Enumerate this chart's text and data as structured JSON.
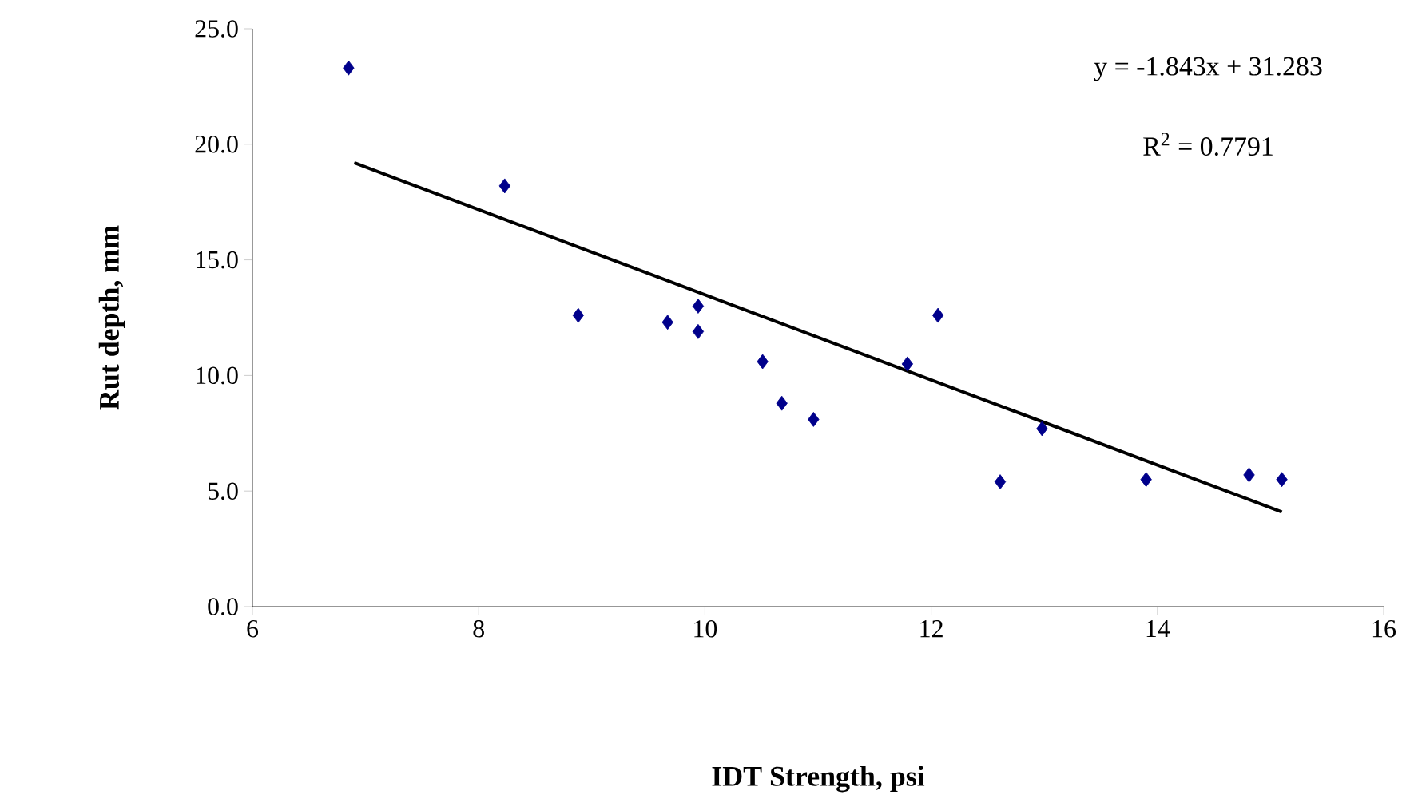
{
  "chart_data": {
    "type": "scatter",
    "xlabel": "IDT Strength, psi",
    "ylabel": "Rut depth, mm",
    "xlim": [
      6,
      16
    ],
    "xticks": [
      6,
      8,
      10,
      12,
      14,
      16
    ],
    "ylim": [
      0,
      25
    ],
    "yticks": [
      {
        "value": 0,
        "label": "0.0"
      },
      {
        "value": 5,
        "label": "5.0"
      },
      {
        "value": 10,
        "label": "10.0"
      },
      {
        "value": 15,
        "label": "15.0"
      },
      {
        "value": 20,
        "label": "20.0"
      },
      {
        "value": 25,
        "label": "25.0"
      }
    ],
    "grid": false,
    "annotations": [
      "y = -1.843x + 31.283",
      "R$^{2}$ = 0.7791"
    ],
    "series": [
      {
        "marker": "diamond",
        "color": "#00008b",
        "x": [
          6.85,
          8.23,
          8.88,
          9.67,
          9.94,
          9.94,
          10.51,
          10.68,
          10.96,
          11.79,
          12.06,
          12.61,
          12.98,
          13.9,
          14.81,
          15.1
        ],
        "values": [
          23.3,
          18.2,
          12.6,
          12.3,
          13.0,
          11.9,
          10.6,
          8.8,
          8.1,
          10.5,
          12.6,
          5.4,
          7.7,
          5.5,
          5.7,
          5.5
        ]
      },
      {
        "type": "line",
        "color": "#000000",
        "x": [
          6.9,
          15.1
        ],
        "values": [
          19.2,
          4.1
        ]
      }
    ]
  }
}
